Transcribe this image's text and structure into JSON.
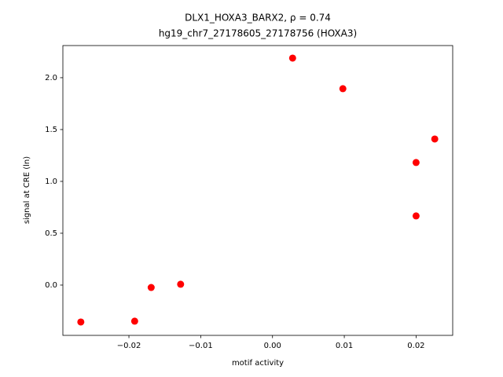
{
  "chart_data": {
    "type": "scatter",
    "title": "DLX1_HOXA3_BARX2, ρ = 0.74",
    "subtitle": "hg19_chr7_27178605_27178756 (HOXA3)",
    "x_label": "motif activity",
    "y_label": "signal at CRE (ln)",
    "color": "#ff0000",
    "x": [
      -0.0267,
      -0.0192,
      -0.0169,
      -0.0128,
      0.0028,
      0.0098,
      0.02,
      0.0226,
      0.02
    ],
    "values": [
      -0.356,
      -0.348,
      -0.023,
      0.008,
      2.189,
      1.894,
      1.182,
      1.409,
      0.667
    ],
    "xlim": [
      -0.0292,
      0.0251
    ],
    "ylim": [
      -0.485,
      2.31
    ],
    "xticks": [
      {
        "value": -0.02,
        "label": "−0.02"
      },
      {
        "value": -0.01,
        "label": "−0.01"
      },
      {
        "value": 0,
        "label": "0.00"
      },
      0.01,
      0.02
    ],
    "yticks": [
      {
        "value": 0,
        "label": "0.0"
      },
      0.5,
      {
        "value": 1,
        "label": "1.0"
      },
      1.5,
      {
        "value": 2,
        "label": "2.0"
      }
    ],
    "grid": false
  }
}
